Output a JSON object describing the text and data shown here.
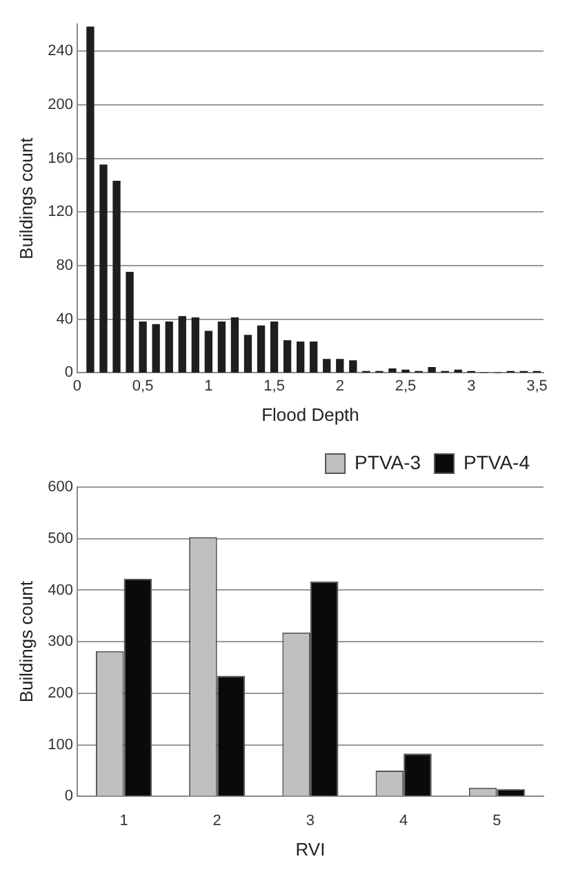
{
  "chart_data": [
    {
      "type": "bar",
      "xlabel": "Flood Depth",
      "ylabel": "Buildings count",
      "x": [
        0.1,
        0.2,
        0.3,
        0.4,
        0.5,
        0.6,
        0.7,
        0.8,
        0.9,
        1.0,
        1.1,
        1.2,
        1.3,
        1.4,
        1.5,
        1.6,
        1.7,
        1.8,
        1.9,
        2.0,
        2.1,
        2.2,
        2.3,
        2.4,
        2.5,
        2.6,
        2.7,
        2.8,
        2.9,
        3.0,
        3.1,
        3.2,
        3.3,
        3.4,
        3.5
      ],
      "values": [
        258,
        155,
        143,
        75,
        38,
        36,
        38,
        42,
        41,
        31,
        38,
        41,
        28,
        35,
        38,
        24,
        23,
        23,
        10,
        10,
        9,
        1,
        1,
        3,
        2,
        1,
        4,
        1,
        2,
        1,
        0,
        0,
        1,
        1,
        1
      ],
      "color": "#1e1e1e",
      "xlim": [
        0,
        3.55
      ],
      "xticks": [
        0,
        {
          "value": 0.5,
          "label": "0,5"
        },
        1,
        {
          "value": 1.5,
          "label": "1,5"
        },
        2,
        {
          "value": 2.5,
          "label": "2,5"
        },
        3,
        {
          "value": 3.5,
          "label": "3,5"
        }
      ],
      "ylim": [
        0,
        260
      ],
      "yticks": [
        0,
        40,
        80,
        120,
        160,
        200,
        240
      ],
      "grid": "y"
    },
    {
      "type": "bar",
      "xlabel": "RVI",
      "ylabel": "Buildings count",
      "categories": [
        "1",
        "2",
        "3",
        "4",
        "5"
      ],
      "series": [
        {
          "name": "PTVA-3",
          "color": "#c0c0c0",
          "values": [
            282,
            503,
            318,
            50,
            17
          ]
        },
        {
          "name": "PTVA-4",
          "color": "#0a0a0a",
          "values": [
            422,
            234,
            417,
            83,
            14
          ]
        }
      ],
      "ylim": [
        0,
        600
      ],
      "yticks": [
        0,
        100,
        200,
        300,
        400,
        500,
        600
      ],
      "grid": "y",
      "legend": "top right"
    }
  ]
}
